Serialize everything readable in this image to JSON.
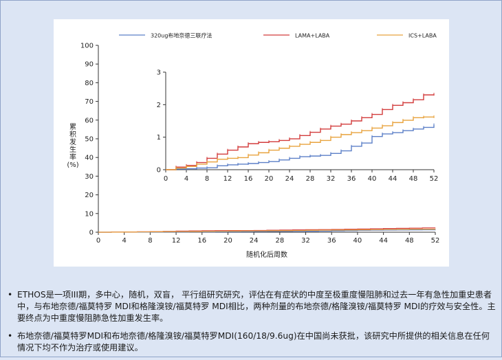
{
  "chart_data": {
    "type": "line",
    "xlabel": "随机化后周数",
    "ylabel": "累积发生率 (%)",
    "ylabel_lines": [
      "累",
      "积",
      "发",
      "生",
      "率",
      "(%)"
    ],
    "xlim": [
      0,
      52
    ],
    "ylim": [
      0,
      100
    ],
    "xticks": [
      0,
      4,
      8,
      12,
      16,
      20,
      24,
      28,
      32,
      36,
      40,
      44,
      48,
      52
    ],
    "yticks": [
      0,
      10,
      20,
      30,
      40,
      50,
      60,
      70,
      80,
      90,
      100
    ],
    "legend": {
      "placement": "top"
    },
    "series": [
      {
        "name": "320ug布地奈德三联疗法",
        "color": "#5b7fc7",
        "x": [
          0,
          2,
          4,
          6,
          8,
          10,
          12,
          14,
          16,
          18,
          20,
          22,
          24,
          26,
          28,
          30,
          32,
          34,
          36,
          38,
          40,
          42,
          44,
          46,
          48,
          50,
          52
        ],
        "y": [
          0,
          0.02,
          0.03,
          0.05,
          0.06,
          0.12,
          0.15,
          0.17,
          0.19,
          0.22,
          0.25,
          0.3,
          0.35,
          0.4,
          0.42,
          0.44,
          0.5,
          0.58,
          0.72,
          0.82,
          1.02,
          1.1,
          1.14,
          1.2,
          1.25,
          1.3,
          1.38
        ]
      },
      {
        "name": "LAMA+LABA",
        "color": "#d23b3b",
        "x": [
          0,
          2,
          4,
          6,
          8,
          10,
          12,
          14,
          16,
          18,
          20,
          22,
          24,
          26,
          28,
          30,
          32,
          34,
          36,
          38,
          40,
          42,
          44,
          46,
          48,
          50,
          52
        ],
        "y": [
          0,
          0.08,
          0.13,
          0.22,
          0.35,
          0.48,
          0.6,
          0.7,
          0.8,
          0.84,
          0.86,
          0.9,
          0.95,
          1.05,
          1.15,
          1.25,
          1.34,
          1.4,
          1.5,
          1.6,
          1.7,
          1.85,
          1.98,
          2.06,
          2.15,
          2.3,
          2.32
        ]
      },
      {
        "name": "ICS+LABA",
        "color": "#e8a23c",
        "x": [
          0,
          2,
          4,
          6,
          8,
          10,
          12,
          14,
          16,
          18,
          20,
          22,
          24,
          26,
          28,
          30,
          32,
          34,
          36,
          38,
          40,
          42,
          44,
          46,
          48,
          50,
          52
        ],
        "y": [
          0,
          0.05,
          0.1,
          0.17,
          0.24,
          0.32,
          0.35,
          0.37,
          0.45,
          0.52,
          0.6,
          0.66,
          0.72,
          0.78,
          0.84,
          0.9,
          1.0,
          1.08,
          1.14,
          1.2,
          1.28,
          1.35,
          1.45,
          1.52,
          1.6,
          1.62,
          1.63
        ]
      }
    ],
    "inset": {
      "ylim": [
        0,
        3
      ],
      "yticks": [
        0,
        1,
        2,
        3
      ],
      "xlim": [
        0,
        52
      ],
      "xticks": [
        0,
        4,
        8,
        12,
        16,
        20,
        24,
        28,
        32,
        36,
        40,
        44,
        48,
        52
      ]
    }
  },
  "bullets": [
    "ETHOS是一项III期，多中心，随机，双盲， 平行组研究研究，评估在有症状的中度至极重度慢阻肺和过去一年有急性加重史患者中，与布地奈德/福莫特罗 MDI和格隆溴铵/福莫特罗 MDI相比，两种剂量的布地奈德/格隆溴铵/福莫特罗 MDI的疗效与安全性。主要终点为中重度慢阻肺急性加重发生率。",
    "布地奈德/福莫特罗MDI和布地奈德/格隆溴铵/福莫特罗MDI(160/18/9.6ug)在中国尚未获批，该研究中所提供的相关信息在任何情况下均不作为治疗或使用建议。"
  ],
  "bullet_symbol": "•"
}
